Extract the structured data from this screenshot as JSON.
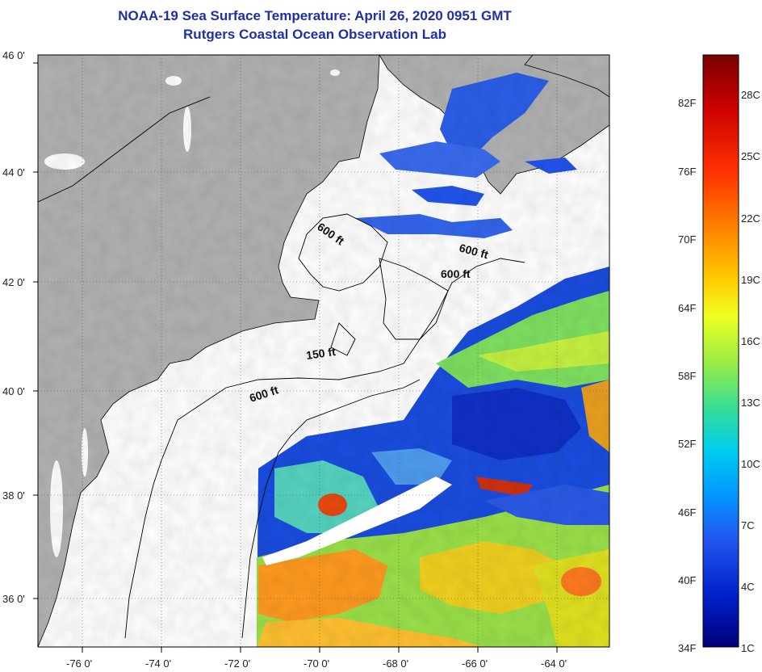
{
  "title": {
    "line1": "NOAA-19 Sea Surface Temperature:  April 26, 2020 0951 GMT",
    "line2": "Rutgers Coastal Ocean Observation Lab"
  },
  "map": {
    "lat_ticks": [
      "46 0'",
      "44 0'",
      "42 0'",
      "40 0'",
      "38 0'",
      "36 0'"
    ],
    "lon_ticks": [
      "-76 0'",
      "-74 0'",
      "-72 0'",
      "-70 0'",
      "-68 0'",
      "-66 0'",
      "-64 0'"
    ],
    "contour_labels": [
      "600 ft",
      "600 ft",
      "600 ft",
      "150 ft",
      "600 ft"
    ],
    "colors": {
      "land": "#b2b2b2",
      "ocean_nodata": "#ffffff",
      "outline": "#000000"
    }
  },
  "colorbar": {
    "fahrenheit_labels": [
      "82F",
      "76F",
      "70F",
      "64F",
      "58F",
      "52F",
      "46F",
      "40F",
      "34F"
    ],
    "celsius_labels": [
      "28C",
      "25C",
      "22C",
      "19C",
      "16C",
      "13C",
      "10C",
      "7C",
      "4C",
      "1C"
    ],
    "gradient_colors": [
      "#7a0000",
      "#cc0000",
      "#ff3300",
      "#ff8800",
      "#ffcc00",
      "#eeff22",
      "#99ee44",
      "#33dd99",
      "#00ccee",
      "#0099ff",
      "#2255ee",
      "#0022cc",
      "#00007a"
    ]
  }
}
